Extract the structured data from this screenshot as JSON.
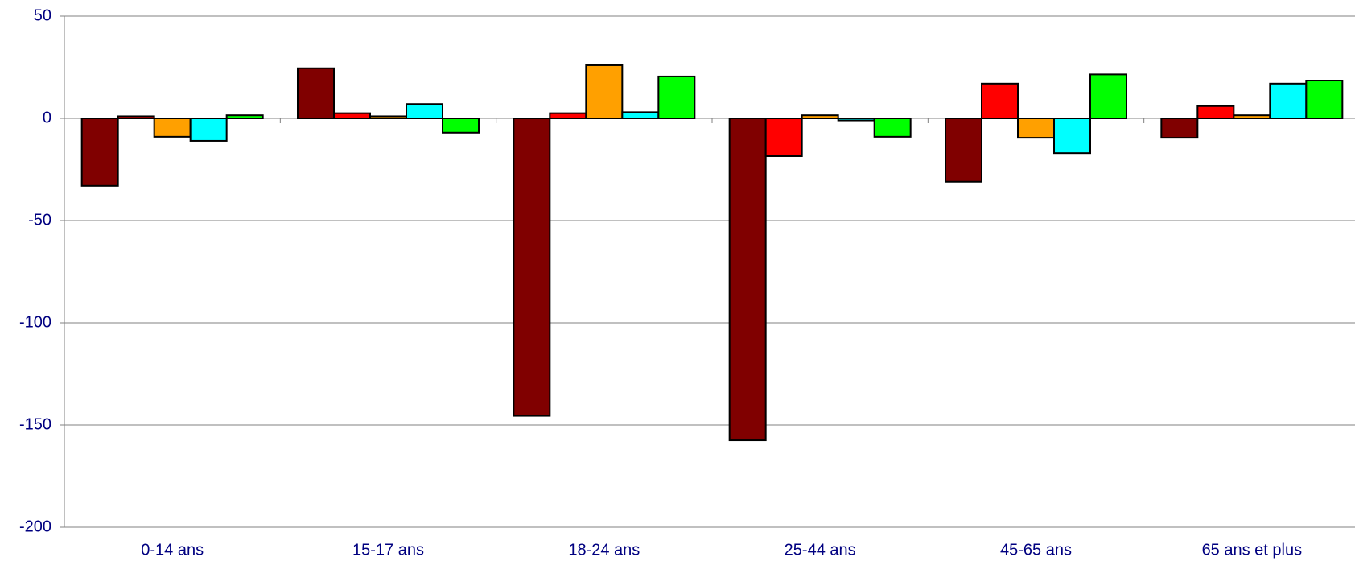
{
  "chart_data": {
    "type": "bar",
    "categories": [
      "0-14 ans",
      "15-17 ans",
      "18-24 ans",
      "25-44 ans",
      "45-65 ans",
      "65 ans et plus"
    ],
    "series": [
      {
        "color": "#800000",
        "values": [
          -33,
          24.5,
          -145.5,
          -157.5,
          -31,
          -9.5
        ]
      },
      {
        "color": "#ff0000",
        "values": [
          1,
          2.5,
          2.5,
          -18.5,
          17,
          6
        ]
      },
      {
        "color": "#ffa000",
        "values": [
          -9,
          1,
          26,
          1.5,
          -9.5,
          1.5
        ]
      },
      {
        "color": "#00ffff",
        "values": [
          -11,
          7,
          3,
          -1,
          -17,
          17
        ]
      },
      {
        "color": "#00ff00",
        "values": [
          1.5,
          -7,
          20.5,
          -9,
          21.5,
          18.5
        ]
      }
    ],
    "ylim": [
      -200,
      50
    ],
    "yticks": [
      -200,
      -150,
      -100,
      -50,
      0,
      50
    ],
    "grid": true
  }
}
